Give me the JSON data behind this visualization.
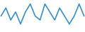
{
  "values": [
    4,
    6,
    3,
    5,
    2,
    5,
    7,
    4,
    3,
    7,
    5,
    3,
    6,
    4,
    2,
    4,
    7,
    4
  ],
  "line_color": "#3a8fc4",
  "background_color": "#ffffff",
  "linewidth": 1.2
}
